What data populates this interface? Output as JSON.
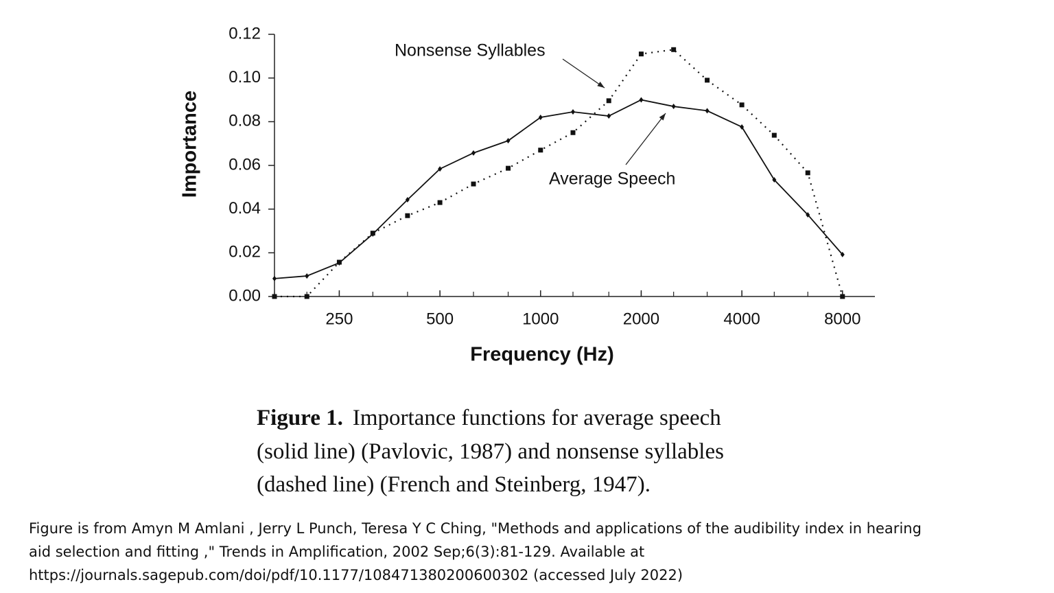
{
  "chart_data": {
    "type": "line",
    "x_label": "Frequency (Hz)",
    "y_label": "Importance",
    "log_x": true,
    "x": [
      160,
      200,
      250,
      315,
      400,
      500,
      630,
      800,
      1000,
      1250,
      1600,
      2000,
      2500,
      3150,
      4000,
      5000,
      6300,
      8000
    ],
    "series": [
      {
        "name": "Average Speech",
        "color": "#111111",
        "style": "solid",
        "marker": "diamond",
        "values": [
          0.0082,
          0.0094,
          0.0154,
          0.0286,
          0.0443,
          0.0584,
          0.0657,
          0.0713,
          0.082,
          0.0845,
          0.0826,
          0.09,
          0.087,
          0.085,
          0.0776,
          0.0534,
          0.0374,
          0.0192
        ]
      },
      {
        "name": "Nonsense Syllables",
        "color": "#111111",
        "style": "dotted",
        "marker": "square",
        "values": [
          0,
          0,
          0.0157,
          0.029,
          0.037,
          0.043,
          0.0515,
          0.0587,
          0.067,
          0.075,
          0.0896,
          0.111,
          0.113,
          0.099,
          0.0877,
          0.0738,
          0.0566,
          0
        ]
      }
    ],
    "xlim": [
      160,
      10000
    ],
    "xticks": [
      250,
      500,
      1000,
      2000,
      4000,
      8000
    ],
    "ylim": [
      0,
      0.12
    ],
    "yticks": [
      {
        "value": 0,
        "label": "0.00"
      },
      {
        "value": 0.02,
        "label": "0.02"
      },
      {
        "value": 0.04,
        "label": "0.04"
      },
      {
        "value": 0.06,
        "label": "0.06"
      },
      {
        "value": 0.08,
        "label": "0.08"
      },
      {
        "value": 0.1,
        "label": "0.10"
      },
      {
        "value": 0.12,
        "label": "0.12"
      }
    ],
    "grid": false
  },
  "figure_caption": {
    "label": "Figure 1.",
    "lines": [
      "Importance functions for average speech",
      "(solid line) (Pavlovic, 1987) and nonsense syllables",
      "(dashed line) (French and Steinberg, 1947)."
    ]
  },
  "source_note": [
    "Figure is from Amyn M Amlani , Jerry L Punch, Teresa Y C Ching, \"Methods and applications of the audibility index in hearing",
    "aid selection and fitting ,\" Trends in Amplification, 2002 Sep;6(3):81-129.  Available at",
    "https://journals.sagepub.com/doi/pdf/10.1177/108471380200600302 (accessed July 2022)"
  ]
}
